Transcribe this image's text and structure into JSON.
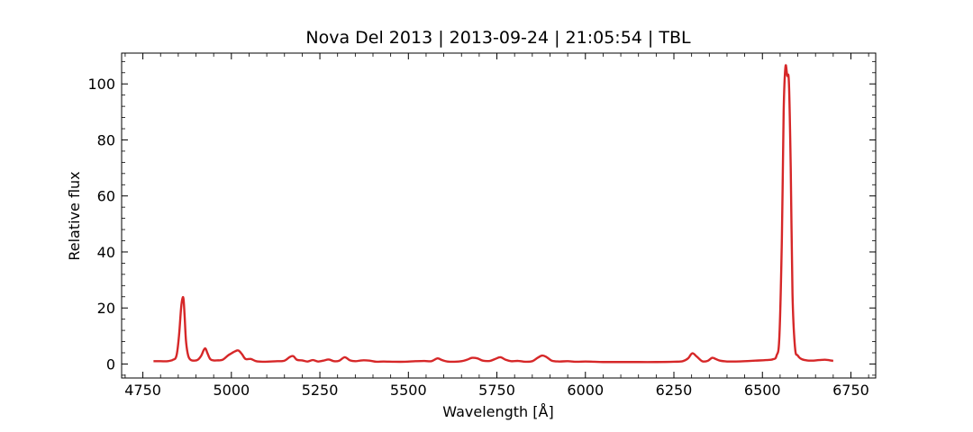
{
  "chart_data": {
    "type": "line",
    "title": "Nova Del 2013 | 2013-09-24 | 21:05:54 | TBL",
    "xlabel": "Wavelength [Å]",
    "ylabel": "Relative flux",
    "xlim": [
      4690,
      6820
    ],
    "ylim": [
      -5,
      111
    ],
    "xticks": [
      4750,
      5000,
      5250,
      5500,
      5750,
      6000,
      6250,
      6500,
      6750
    ],
    "yticks": [
      0,
      20,
      40,
      60,
      80,
      100
    ],
    "grid": false,
    "line_color": "#d62728",
    "series": [
      {
        "x": [
          4780,
          4800,
          4820,
          4835,
          4845,
          4852,
          4858,
          4862,
          4865,
          4868,
          4872,
          4878,
          4885,
          4895,
          4905,
          4915,
          4922,
          4927,
          4932,
          4940,
          4950,
          4960,
          4975,
          4990,
          5000,
          5010,
          5020,
          5030,
          5040,
          5055,
          5070,
          5090,
          5110,
          5130,
          5150,
          5165,
          5175,
          5185,
          5200,
          5215,
          5230,
          5245,
          5260,
          5275,
          5290,
          5305,
          5320,
          5335,
          5350,
          5370,
          5390,
          5410,
          5430,
          5460,
          5490,
          5520,
          5545,
          5565,
          5582,
          5595,
          5610,
          5630,
          5650,
          5665,
          5680,
          5695,
          5710,
          5730,
          5745,
          5760,
          5775,
          5790,
          5810,
          5830,
          5850,
          5865,
          5878,
          5890,
          5905,
          5925,
          5950,
          5975,
          6000,
          6025,
          6050,
          6100,
          6150,
          6200,
          6250,
          6275,
          6290,
          6302,
          6315,
          6330,
          6345,
          6358,
          6368,
          6380,
          6400,
          6425,
          6450,
          6480,
          6510,
          6530,
          6540,
          6548,
          6555,
          6560,
          6565,
          6570,
          6575,
          6580,
          6585,
          6592,
          6600,
          6610,
          6625,
          6640,
          6660,
          6680,
          6700
        ],
        "y": [
          1,
          1,
          1,
          1.5,
          3,
          10,
          20,
          23.5,
          23,
          17,
          8,
          3,
          1.5,
          1.2,
          1.5,
          3,
          5,
          5.5,
          4,
          1.8,
          1.3,
          1.3,
          1.5,
          3,
          3.8,
          4.5,
          4.8,
          3.5,
          1.8,
          1.8,
          1,
          0.8,
          0.9,
          1,
          1.2,
          2.5,
          2.8,
          1.5,
          1.3,
          0.9,
          1.4,
          0.9,
          1.2,
          1.6,
          1,
          1.2,
          2.4,
          1.3,
          1,
          1.3,
          1.2,
          0.8,
          0.9,
          0.8,
          0.8,
          1,
          1.1,
          1,
          2,
          1.4,
          0.9,
          0.8,
          1,
          1.5,
          2.2,
          2,
          1.2,
          1.1,
          1.8,
          2.4,
          1.5,
          1,
          1.1,
          0.8,
          1,
          2.2,
          3,
          2.5,
          1.2,
          0.9,
          1,
          0.8,
          0.9,
          0.8,
          0.7,
          0.7,
          0.7,
          0.7,
          0.8,
          1,
          2,
          3.8,
          2.6,
          1,
          1.1,
          2.2,
          1.8,
          1.2,
          0.9,
          0.9,
          1,
          1.2,
          1.4,
          1.7,
          3,
          10,
          45,
          90,
          106,
          103,
          100,
          70,
          25,
          6,
          3,
          1.8,
          1.3,
          1.2,
          1.4,
          1.5,
          1.1
        ]
      }
    ]
  }
}
